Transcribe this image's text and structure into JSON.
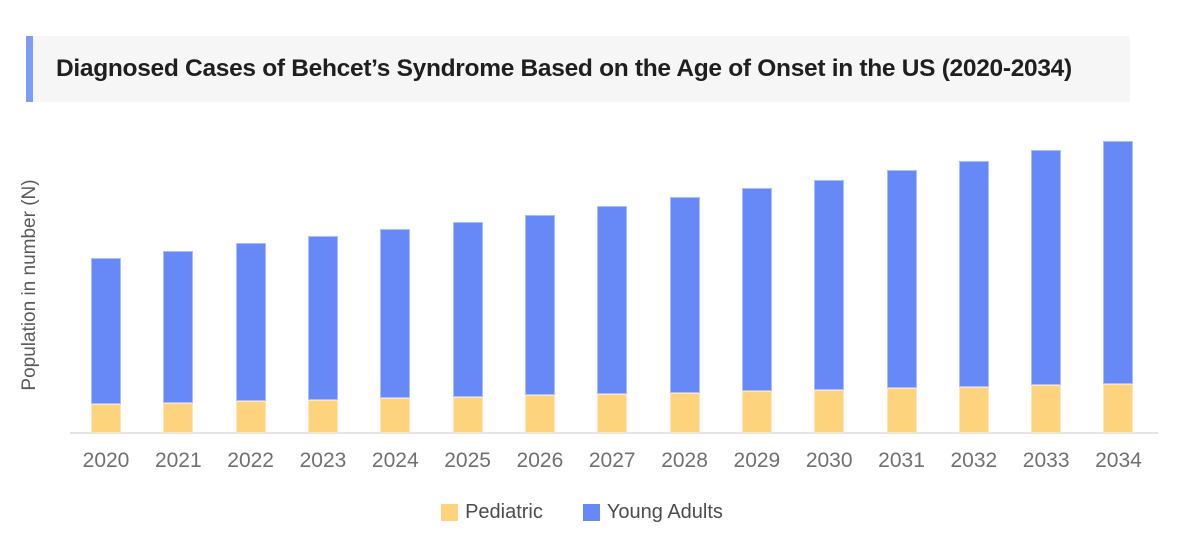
{
  "title": "Diagnosed Cases of Behcet’s Syndrome Based on the Age of Onset in the US (2020-2034)",
  "colors": {
    "accent_bar": "#7D9DF5",
    "title_box_bg": "#F6F6F6",
    "pediatric": "#FED37E",
    "young_adults": "#6788F7",
    "axis_line": "#E4E4E4"
  },
  "chart_data": {
    "type": "bar",
    "stacked": true,
    "title": "Diagnosed Cases of Behcet’s Syndrome Based on the Age of Onset in the US (2020-2034)",
    "xlabel": "",
    "ylabel": "Population in number (N)",
    "categories": [
      "2020",
      "2021",
      "2022",
      "2023",
      "2024",
      "2025",
      "2026",
      "2027",
      "2028",
      "2029",
      "2030",
      "2031",
      "2032",
      "2033",
      "2034"
    ],
    "series": [
      {
        "name": "Pediatric",
        "color": "#FED37E",
        "values": [
          29,
          30.5,
          32,
          33.5,
          35,
          36.5,
          38,
          39,
          40.5,
          42,
          43.5,
          45,
          46.5,
          48,
          49.5
        ]
      },
      {
        "name": "Young Adults",
        "color": "#6788F7",
        "values": [
          146.5,
          152,
          158,
          163.5,
          169,
          175,
          180.5,
          188.5,
          195.5,
          203,
          210,
          218,
          226,
          235,
          243
        ]
      }
    ],
    "totals": [
      175.5,
      182.5,
      190,
      197,
      204,
      211.5,
      218.5,
      227.5,
      236,
      245,
      253.5,
      263,
      272.5,
      283,
      292.5
    ],
    "value_units": "relative units (chart shows no numeric axis labels)",
    "ylim": [
      0,
      304
    ],
    "grid": false,
    "y_tick_labels_shown": false,
    "legend_position": "bottom"
  }
}
